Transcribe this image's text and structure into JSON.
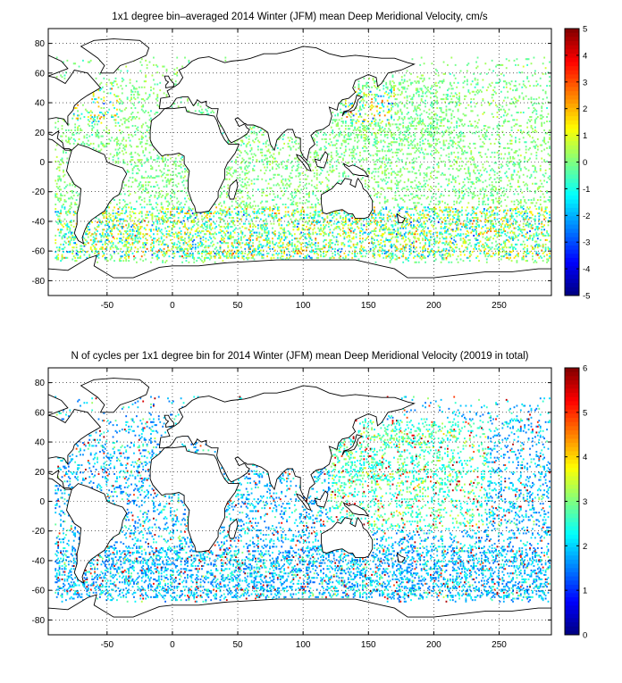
{
  "chart_data": [
    {
      "type": "heatmap",
      "title": "1x1 degree bin–averaged 2014 Winter (JFM) mean Deep Meridional Velocity, cm/s",
      "xlabel": "",
      "ylabel": "",
      "xlim": [
        -95,
        290
      ],
      "ylim": [
        -90,
        90
      ],
      "x_ticks": [
        -50,
        0,
        50,
        100,
        150,
        200,
        250
      ],
      "y_ticks": [
        80,
        60,
        40,
        20,
        0,
        -20,
        -40,
        -60,
        -80
      ],
      "grid": true,
      "colorbar": {
        "min": -5,
        "max": 5,
        "ticks": [
          5,
          4,
          3,
          2,
          1,
          0,
          -1,
          -2,
          -3,
          -4,
          -5
        ],
        "colormap": "jet",
        "placement": "right"
      },
      "values": "scattered 1x1 degree bins over ocean, mostly near 0 (green/cyan), with strong positive and negative values (red/blue) concentrated along the Southern Ocean band 35–65S and western boundary currents"
    },
    {
      "type": "heatmap",
      "title": "N of cycles per 1x1 degree bin for 2014 Winter (JFM) mean Deep Meridional Velocity (20019 in total)",
      "xlabel": "",
      "ylabel": "",
      "xlim": [
        -95,
        290
      ],
      "ylim": [
        -90,
        90
      ],
      "x_ticks": [
        -50,
        0,
        50,
        100,
        150,
        200,
        250
      ],
      "y_ticks": [
        80,
        60,
        40,
        20,
        0,
        -20,
        -40,
        -60,
        -80
      ],
      "grid": true,
      "colorbar": {
        "min": 0,
        "max": 6,
        "ticks": [
          6,
          5,
          4,
          3,
          2,
          1,
          0
        ],
        "colormap": "jet",
        "placement": "right"
      },
      "values": "scattered 1x1 degree bins over ocean, mostly 1–2 cycles (blue/cyan), with higher counts (yellow/red) in the North Pacific and western Pacific"
    }
  ],
  "colors": {
    "colormap_stops": [
      "#00008f",
      "#0000ff",
      "#00ffff",
      "#ffff00",
      "#ff0000",
      "#800000"
    ],
    "coastline": "#000000",
    "grid": "#000000",
    "background": "#ffffff"
  }
}
